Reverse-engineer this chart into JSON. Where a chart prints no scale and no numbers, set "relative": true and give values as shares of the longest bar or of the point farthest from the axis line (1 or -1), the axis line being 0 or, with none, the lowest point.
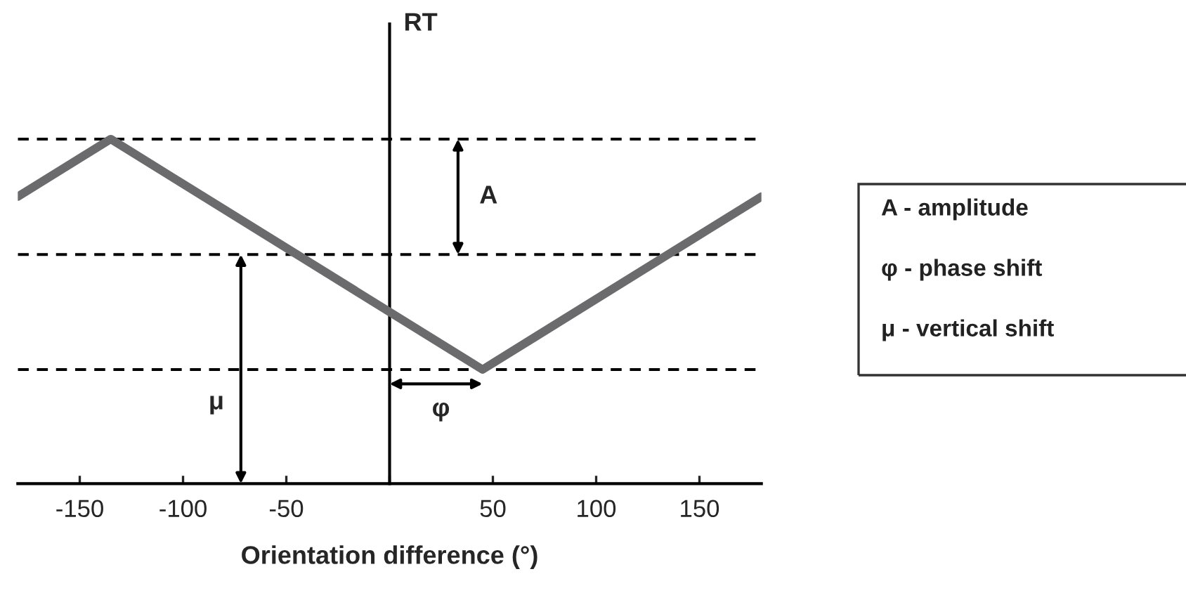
{
  "chart_data": {
    "type": "line",
    "relative": true,
    "xlabel": "Orientation difference (°)",
    "ylabel": "RT",
    "x": [
      -180,
      -135,
      45,
      180
    ],
    "series": [
      {
        "color": "#6b6b6e",
        "values": [
          0.833,
          1,
          0.331,
          0.833
        ]
      }
    ],
    "xlim": [
      -180,
      180
    ],
    "xticks": [
      -150,
      -100,
      -50,
      {
        "value": 0,
        "label": null
      },
      50,
      100,
      150
    ],
    "ref_lines": [
      {
        "axis": "y",
        "value": 1,
        "color": "#000000",
        "line_style": "dashed"
      },
      {
        "axis": "y",
        "value": 0.665,
        "color": "#000000",
        "line_style": "dashed"
      },
      {
        "axis": "y",
        "value": 0.331,
        "color": "#000000",
        "line_style": "dashed"
      }
    ],
    "annotations": [
      "A",
      "φ",
      "μ",
      "A - amplitude",
      "φ - phase shift",
      "μ - vertical shift"
    ],
    "marker": "none",
    "line_style": "solid"
  }
}
